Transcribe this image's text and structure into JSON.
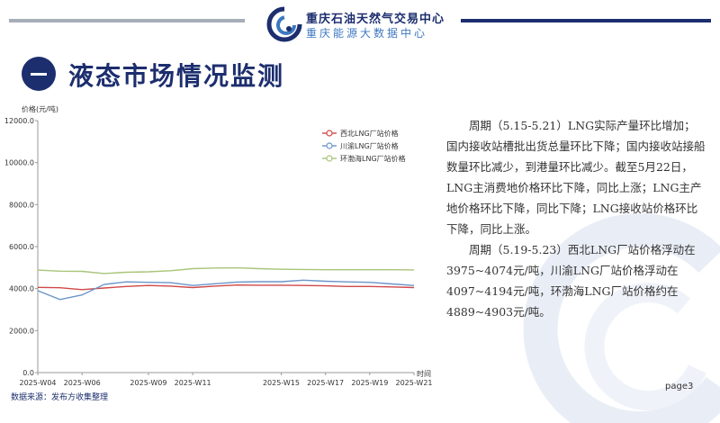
{
  "header": {
    "org_name": "重庆石油天然气交易中心",
    "org_sub": "重庆能源大数据中心"
  },
  "section": {
    "title": "液态市场情况监测"
  },
  "chart_data": {
    "type": "line",
    "ylabel": "价格(元/吨)",
    "xlabel": "时间",
    "ylim": [
      0,
      12000
    ],
    "yticks": [
      "0.0",
      "2000.0",
      "4000.0",
      "6000.0",
      "8000.0",
      "10000.0",
      "12000.0"
    ],
    "x": [
      "2025-W04",
      "2025-W05",
      "2025-W06",
      "2025-W07",
      "2025-W08",
      "2025-W09",
      "2025-W10",
      "2025-W11",
      "2025-W12",
      "2025-W13",
      "2025-W14",
      "2025-W15",
      "2025-W16",
      "2025-W17",
      "2025-W18",
      "2025-W19",
      "2025-W20",
      "2025-W21"
    ],
    "xticks": [
      "2025-W04",
      "2025-W06",
      "2025-W09",
      "2025-W11",
      "2025-W15",
      "2025-W17",
      "2025-W19",
      "2025-W21"
    ],
    "grid": false,
    "legend_position": "top-right",
    "series": [
      {
        "name": "西北LNG厂站价格",
        "color": "#d04848",
        "values": [
          4060,
          4040,
          3950,
          4030,
          4100,
          4150,
          4120,
          4050,
          4120,
          4170,
          4160,
          4160,
          4150,
          4130,
          4100,
          4100,
          4080,
          4050
        ]
      },
      {
        "name": "川渝LNG厂站价格",
        "color": "#6b95c9",
        "values": [
          3900,
          3480,
          3700,
          4200,
          4320,
          4300,
          4280,
          4150,
          4230,
          4310,
          4330,
          4330,
          4400,
          4350,
          4320,
          4300,
          4220,
          4150
        ]
      },
      {
        "name": "环渤海LNG厂站价格",
        "color": "#a9c47a",
        "values": [
          4880,
          4830,
          4820,
          4720,
          4780,
          4800,
          4850,
          4950,
          4980,
          4990,
          4950,
          4920,
          4910,
          4900,
          4900,
          4900,
          4900,
          4890
        ]
      }
    ]
  },
  "text": {
    "p1": "周期（5.15-5.21）LNG实际产量环比增加；国内接收站槽批出货总量环比下降；国内接收站接船数量环比减少，到港量环比减少。截至5月22日，LNG主消费地价格环比下降，同比上涨；LNG主产地价格环比下降，同比下降；LNG接收站价格环比下降，同比上涨。",
    "p2": "周期（5.19-5.23）西北LNG厂站价格浮动在3975~4074元/吨，川渝LNG厂站价格浮动在4097~4194元/吨，环渤海LNG厂站价格约在4889~4903元/吨。"
  },
  "footer": {
    "source": "数据来源：发布方收集整理",
    "page": "page3"
  }
}
